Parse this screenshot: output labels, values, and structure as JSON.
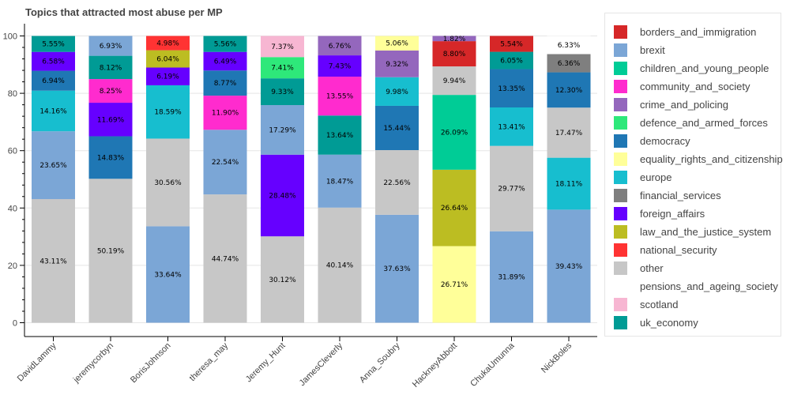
{
  "chart_data": {
    "type": "bar",
    "stacked": true,
    "title": "Topics that attracted most abuse per MP",
    "xlabel": "",
    "ylabel": "",
    "ylim": [
      0,
      100
    ],
    "yticks": [
      0,
      20,
      40,
      60,
      80,
      100
    ],
    "legend_position": "right",
    "categories": [
      "DavidLammy",
      "jeremycorbyn",
      "BorisJohnson",
      "theresa_may",
      "Jeremy_Hunt",
      "JamesCleverly",
      "Anna_Soubry",
      "HackneyAbbott",
      "ChukaUmunna",
      "NickBoles"
    ],
    "topics": [
      {
        "name": "borders_and_immigration",
        "color": "#d62728"
      },
      {
        "name": "brexit",
        "color": "#7ba6d6"
      },
      {
        "name": "children_and_young_people",
        "color": "#00cc96"
      },
      {
        "name": "community_and_society",
        "color": "#ff2bce"
      },
      {
        "name": "crime_and_policing",
        "color": "#9467bd"
      },
      {
        "name": "defence_and_armed_forces",
        "color": "#2ee87a"
      },
      {
        "name": "democracy",
        "color": "#1f77b4"
      },
      {
        "name": "equality_rights_and_citizenship",
        "color": "#ffff99"
      },
      {
        "name": "europe",
        "color": "#17becf"
      },
      {
        "name": "financial_services",
        "color": "#7f7f7f"
      },
      {
        "name": "foreign_affairs",
        "color": "#6600ff"
      },
      {
        "name": "law_and_the_justice_system",
        "color": "#bcbd22"
      },
      {
        "name": "national_security",
        "color": "#ff3333"
      },
      {
        "name": "other",
        "color": "#c7c7c7"
      },
      {
        "name": "pensions_and_ageing_society",
        "color": "#ffffff"
      },
      {
        "name": "scotland",
        "color": "#f7b6d2"
      },
      {
        "name": "uk_economy",
        "color": "#009b95"
      }
    ],
    "stacks": [
      [
        {
          "topic": "other",
          "value": 43.11,
          "label": "43.11%"
        },
        {
          "topic": "brexit",
          "value": 23.65,
          "label": "23.65%"
        },
        {
          "topic": "europe",
          "value": 14.16,
          "label": "14.16%"
        },
        {
          "topic": "democracy",
          "value": 6.94,
          "label": "6.94%"
        },
        {
          "topic": "foreign_affairs",
          "value": 6.58,
          "label": "6.58%"
        },
        {
          "topic": "uk_economy",
          "value": 5.55,
          "label": "5.55%"
        }
      ],
      [
        {
          "topic": "other",
          "value": 50.19,
          "label": "50.19%"
        },
        {
          "topic": "democracy",
          "value": 14.83,
          "label": "14.83%"
        },
        {
          "topic": "foreign_affairs",
          "value": 11.69,
          "label": "11.69%"
        },
        {
          "topic": "community_and_society",
          "value": 8.25,
          "label": "8.25%"
        },
        {
          "topic": "uk_economy",
          "value": 8.12,
          "label": "8.12%"
        },
        {
          "topic": "brexit",
          "value": 6.93,
          "label": "6.93%"
        }
      ],
      [
        {
          "topic": "brexit",
          "value": 33.64,
          "label": "33.64%"
        },
        {
          "topic": "other",
          "value": 30.56,
          "label": "30.56%"
        },
        {
          "topic": "europe",
          "value": 18.59,
          "label": "18.59%"
        },
        {
          "topic": "foreign_affairs",
          "value": 6.19,
          "label": "6.19%"
        },
        {
          "topic": "law_and_the_justice_system",
          "value": 6.04,
          "label": "6.04%"
        },
        {
          "topic": "national_security",
          "value": 4.98,
          "label": "4.98%"
        }
      ],
      [
        {
          "topic": "other",
          "value": 44.74,
          "label": "44.74%"
        },
        {
          "topic": "brexit",
          "value": 22.54,
          "label": "22.54%"
        },
        {
          "topic": "community_and_society",
          "value": 11.9,
          "label": "11.90%"
        },
        {
          "topic": "democracy",
          "value": 8.77,
          "label": "8.77%"
        },
        {
          "topic": "foreign_affairs",
          "value": 6.49,
          "label": "6.49%"
        },
        {
          "topic": "uk_economy",
          "value": 5.56,
          "label": "5.56%"
        }
      ],
      [
        {
          "topic": "other",
          "value": 30.12,
          "label": "30.12%"
        },
        {
          "topic": "foreign_affairs",
          "value": 28.48,
          "label": "28.48%"
        },
        {
          "topic": "brexit",
          "value": 17.29,
          "label": "17.29%"
        },
        {
          "topic": "uk_economy",
          "value": 9.33,
          "label": "9.33%"
        },
        {
          "topic": "defence_and_armed_forces",
          "value": 7.41,
          "label": "7.41%"
        },
        {
          "topic": "scotland",
          "value": 7.37,
          "label": "7.37%"
        }
      ],
      [
        {
          "topic": "other",
          "value": 40.14,
          "label": "40.14%"
        },
        {
          "topic": "brexit",
          "value": 18.47,
          "label": "18.47%"
        },
        {
          "topic": "uk_economy",
          "value": 13.64,
          "label": "13.64%"
        },
        {
          "topic": "community_and_society",
          "value": 13.55,
          "label": "13.55%"
        },
        {
          "topic": "foreign_affairs",
          "value": 7.43,
          "label": "7.43%"
        },
        {
          "topic": "crime_and_policing",
          "value": 6.76,
          "label": "6.76%"
        }
      ],
      [
        {
          "topic": "brexit",
          "value": 37.63,
          "label": "37.63%"
        },
        {
          "topic": "other",
          "value": 22.56,
          "label": "22.56%"
        },
        {
          "topic": "democracy",
          "value": 15.44,
          "label": "15.44%"
        },
        {
          "topic": "europe",
          "value": 9.98,
          "label": "9.98%"
        },
        {
          "topic": "crime_and_policing",
          "value": 9.32,
          "label": "9.32%"
        },
        {
          "topic": "equality_rights_and_citizenship",
          "value": 5.06,
          "label": "5.06%"
        }
      ],
      [
        {
          "topic": "equality_rights_and_citizenship",
          "value": 26.71,
          "label": "26.71%"
        },
        {
          "topic": "law_and_the_justice_system",
          "value": 26.64,
          "label": "26.64%"
        },
        {
          "topic": "children_and_young_people",
          "value": 26.09,
          "label": "26.09%"
        },
        {
          "topic": "other",
          "value": 9.94,
          "label": "9.94%"
        },
        {
          "topic": "borders_and_immigration",
          "value": 8.8,
          "label": "8.80%"
        },
        {
          "topic": "crime_and_policing",
          "value": 1.82,
          "label": "1.82%"
        }
      ],
      [
        {
          "topic": "brexit",
          "value": 31.89,
          "label": "31.89%"
        },
        {
          "topic": "other",
          "value": 29.77,
          "label": "29.77%"
        },
        {
          "topic": "europe",
          "value": 13.41,
          "label": "13.41%"
        },
        {
          "topic": "democracy",
          "value": 13.35,
          "label": "13.35%"
        },
        {
          "topic": "uk_economy",
          "value": 6.05,
          "label": "6.05%"
        },
        {
          "topic": "borders_and_immigration",
          "value": 5.54,
          "label": "5.54%"
        }
      ],
      [
        {
          "topic": "brexit",
          "value": 39.43,
          "label": "39.43%"
        },
        {
          "topic": "europe",
          "value": 18.11,
          "label": "18.11%"
        },
        {
          "topic": "other",
          "value": 17.47,
          "label": "17.47%"
        },
        {
          "topic": "democracy",
          "value": 12.3,
          "label": "12.30%"
        },
        {
          "topic": "financial_services",
          "value": 6.36,
          "label": "6.36%"
        },
        {
          "topic": "pensions_and_ageing_society",
          "value": 6.33,
          "label": "6.33%"
        }
      ]
    ]
  }
}
